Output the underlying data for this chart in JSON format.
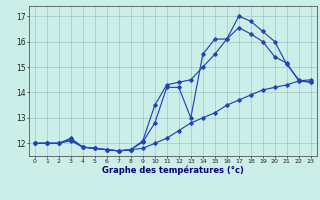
{
  "title": "Graphe des températures (°c)",
  "bg_color": "#cceee8",
  "grid_color": "#a0c8c0",
  "line_color": "#2244bb",
  "hours": [
    0,
    1,
    2,
    3,
    4,
    5,
    6,
    7,
    8,
    9,
    10,
    11,
    12,
    13,
    14,
    15,
    16,
    17,
    18,
    19,
    20,
    21,
    22,
    23
  ],
  "line1": [
    12.0,
    12.0,
    12.0,
    12.1,
    11.85,
    11.8,
    11.75,
    11.7,
    11.75,
    11.8,
    12.0,
    12.2,
    12.5,
    12.8,
    13.0,
    13.2,
    13.5,
    13.7,
    13.9,
    14.1,
    14.2,
    14.3,
    14.45,
    14.5
  ],
  "line2": [
    12.0,
    12.0,
    12.0,
    12.15,
    11.85,
    11.8,
    11.75,
    11.7,
    11.75,
    12.05,
    12.8,
    14.2,
    14.2,
    13.0,
    15.5,
    16.1,
    16.1,
    16.55,
    16.3,
    16.0,
    15.4,
    15.15,
    14.45,
    14.4
  ],
  "line3": [
    12.0,
    12.0,
    12.0,
    12.2,
    11.85,
    11.8,
    11.75,
    11.7,
    11.75,
    12.1,
    13.5,
    14.3,
    14.4,
    14.5,
    15.0,
    15.5,
    16.1,
    17.0,
    16.8,
    16.4,
    16.0,
    15.1,
    14.5,
    14.4
  ],
  "xlim": [
    -0.5,
    23.5
  ],
  "ylim": [
    11.5,
    17.4
  ],
  "yticks": [
    12,
    13,
    14,
    15,
    16,
    17
  ],
  "figsize": [
    3.2,
    2.0
  ],
  "dpi": 100
}
